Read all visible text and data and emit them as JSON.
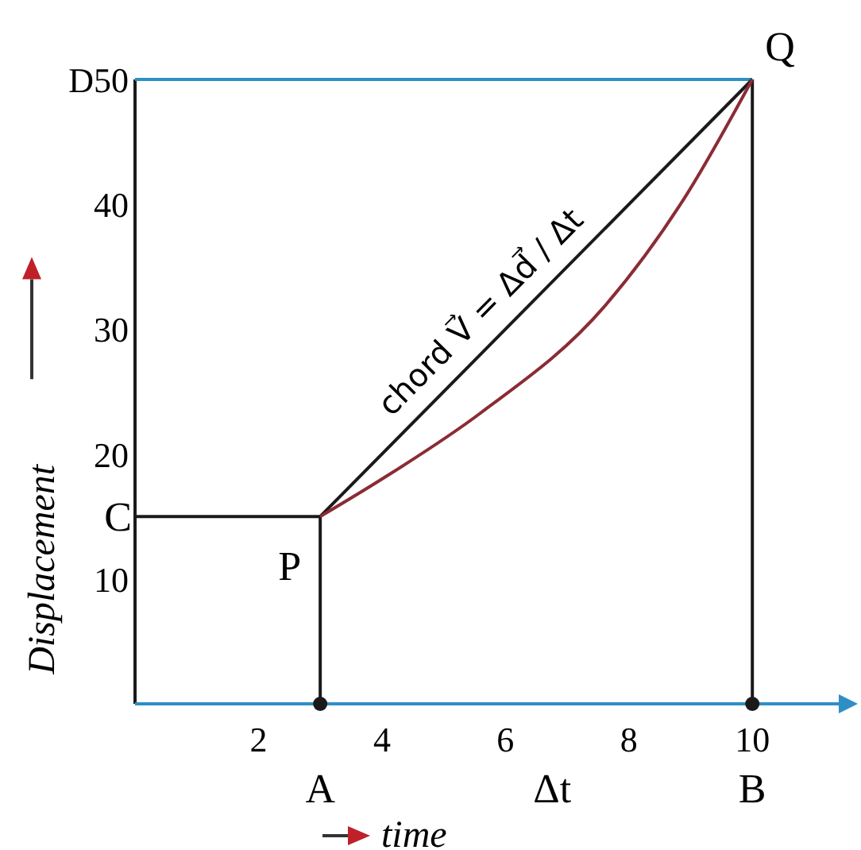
{
  "chart_data": {
    "type": "line",
    "xlabel": "time",
    "ylabel": "Displacement",
    "xlim": [
      0,
      11.4
    ],
    "ylim": [
      0,
      50
    ],
    "xticks": [
      2,
      4,
      6,
      8,
      10
    ],
    "yticks": [
      10,
      20,
      30,
      40,
      {
        "value": 50,
        "label": "D50"
      }
    ],
    "series": [
      {
        "color": "#1a1a1a",
        "x": [
          0,
          3,
          3
        ],
        "values": [
          15,
          15,
          0
        ]
      },
      {
        "color": "#2f8fc4",
        "x": [
          0,
          10
        ],
        "values": [
          50,
          50
        ]
      },
      {
        "color": "#1a1a1a",
        "x": [
          10,
          10
        ],
        "values": [
          50,
          0
        ]
      },
      {
        "color": "#1a1a1a",
        "x": [
          3,
          10
        ],
        "values": [
          15,
          50
        ]
      },
      {
        "color": "#8b2c35",
        "x": [
          3,
          4,
          5.6,
          7.6,
          8.9,
          10
        ],
        "values": [
          15,
          18,
          23.3,
          31.8,
          40.5,
          50
        ]
      },
      {
        "type": "scatter",
        "color": "#1a1a1a",
        "x": [
          3,
          10
        ],
        "values": [
          0,
          0
        ]
      }
    ],
    "annotations": [
      "chord  V⃗ = Δd⃗ / Δt",
      {
        "text": "P",
        "x": 3,
        "y": 15
      },
      {
        "text": "Q",
        "x": 10,
        "y": 50
      },
      {
        "text": "C",
        "x": 0,
        "y": 15
      },
      {
        "text": "A",
        "x": 3,
        "y": 0
      },
      {
        "text": "B",
        "x": 10,
        "y": 0
      },
      "Δt"
    ],
    "grid": false,
    "line_style": "solid"
  }
}
